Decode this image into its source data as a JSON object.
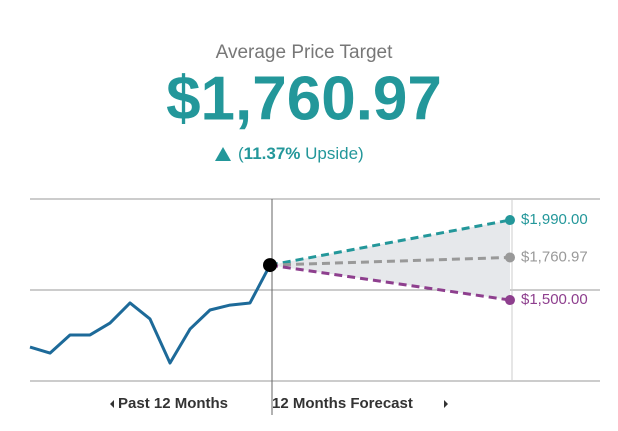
{
  "chart_data": {
    "type": "line",
    "title": "Average Price Target",
    "headline": "$1,760.97",
    "subtitle": [
      "(",
      "11.37%",
      " Upside)"
    ],
    "past_label": "Past 12 Months",
    "forecast_label": "12 Months Forecast",
    "x": [
      0,
      1,
      2,
      3,
      4,
      5,
      6,
      7,
      8,
      9,
      10,
      11,
      12
    ],
    "series": [
      {
        "color": "#1d6a99",
        "values": [
          1212,
          1175,
          1286,
          1286,
          1359,
          1482,
          1384,
          1114,
          1322,
          1439,
          1469,
          1482,
          1714
        ]
      }
    ],
    "forecast_x": 24,
    "forecast": [
      {
        "value": 1990,
        "label": "$1,990.00",
        "color": "#23979a"
      },
      {
        "value": 1760.97,
        "label": "$1,760.97",
        "color": "#999999"
      },
      {
        "value": 1500,
        "label": "$1,500.00",
        "color": "#8e3f8e"
      }
    ],
    "xlim": [
      0,
      28.5
    ],
    "ylim": [
      1004,
      2119
    ]
  }
}
